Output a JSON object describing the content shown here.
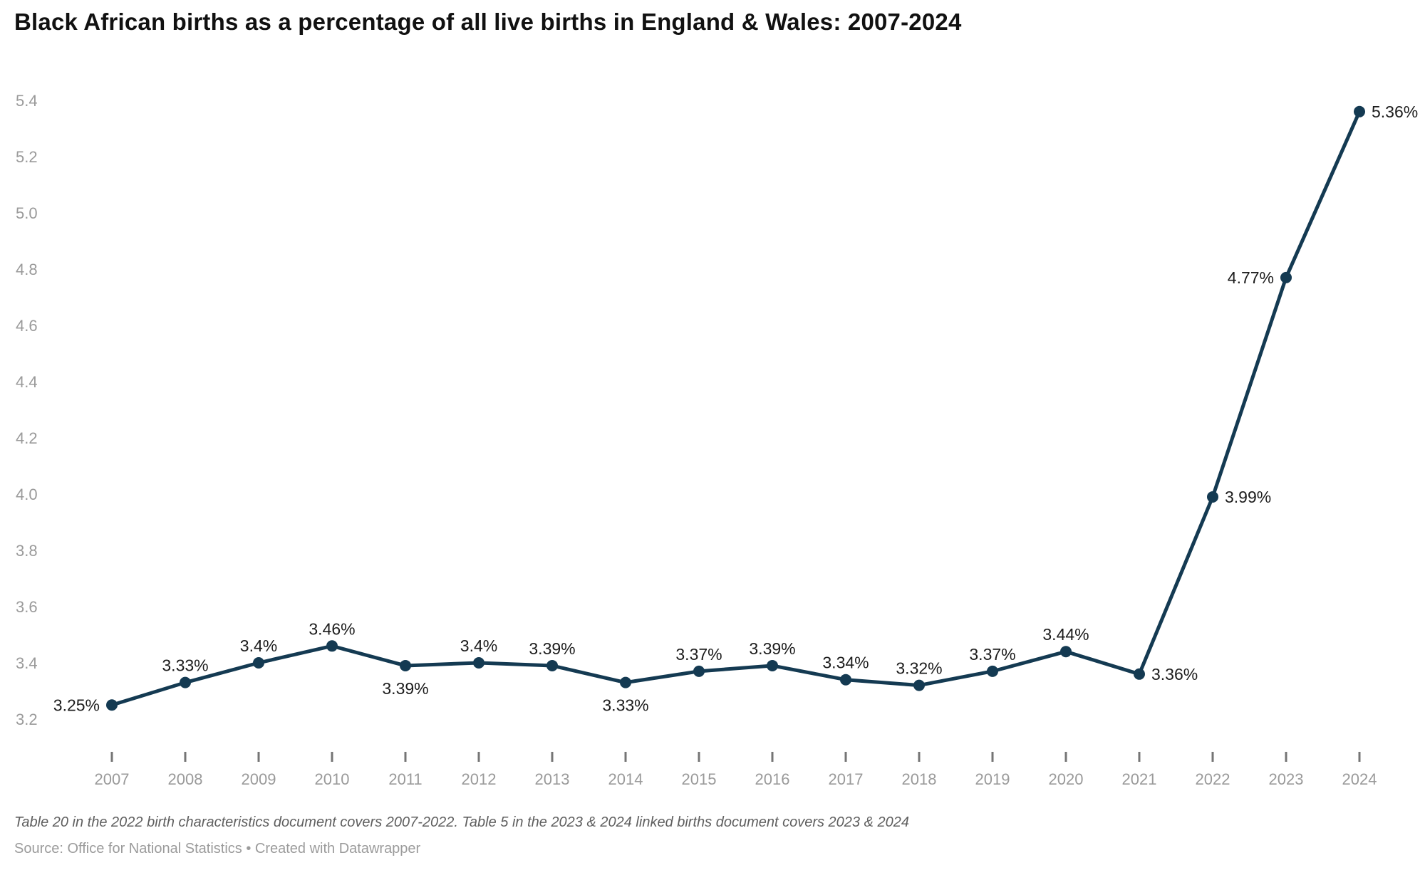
{
  "header": {
    "title": "Black African births as a percentage of all live births in England & Wales: 2007-2024"
  },
  "footer": {
    "note": "Table 20 in the 2022 birth characteristics document covers 2007-2022. Table 5 in the 2023 & 2024 linked births document covers 2023 & 2024",
    "source": "Source: Office for National Statistics • Created with Datawrapper"
  },
  "chart_data": {
    "type": "line",
    "title": "Black African births as a percentage of all live births in England & Wales: 2007-2024",
    "xlabel": "",
    "ylabel": "",
    "x": [
      2007,
      2008,
      2009,
      2010,
      2011,
      2012,
      2013,
      2014,
      2015,
      2016,
      2017,
      2018,
      2019,
      2020,
      2021,
      2022,
      2023,
      2024
    ],
    "values": [
      3.25,
      3.33,
      3.4,
      3.46,
      3.39,
      3.4,
      3.39,
      3.33,
      3.37,
      3.39,
      3.34,
      3.32,
      3.37,
      3.44,
      3.36,
      3.99,
      4.77,
      5.36
    ],
    "point_labels": [
      "3.25%",
      "3.33%",
      "3.4%",
      "3.46%",
      "3.39%",
      "3.4%",
      "3.39%",
      "3.33%",
      "3.37%",
      "3.39%",
      "3.34%",
      "3.32%",
      "3.37%",
      "3.44%",
      "3.36%",
      "3.99%",
      "4.77%",
      "5.36%"
    ],
    "label_placement": [
      "left",
      "above",
      "above",
      "above",
      "below",
      "above",
      "above",
      "below",
      "above",
      "above",
      "above",
      "above",
      "above",
      "above",
      "right",
      "right",
      "left",
      "right"
    ],
    "y_ticks": [
      3.2,
      3.4,
      3.6,
      3.8,
      4.0,
      4.2,
      4.4,
      4.6,
      4.8,
      5.0,
      5.2,
      5.4
    ],
    "ylim": [
      3.2,
      5.4
    ],
    "grid": false,
    "legend": "none",
    "colors": {
      "line": "#143a52",
      "point": "#143a52",
      "axis_text": "#9a9a9a",
      "tick_mark": "#757575",
      "data_label": "#1c1c1c",
      "background": "#ffffff"
    }
  }
}
